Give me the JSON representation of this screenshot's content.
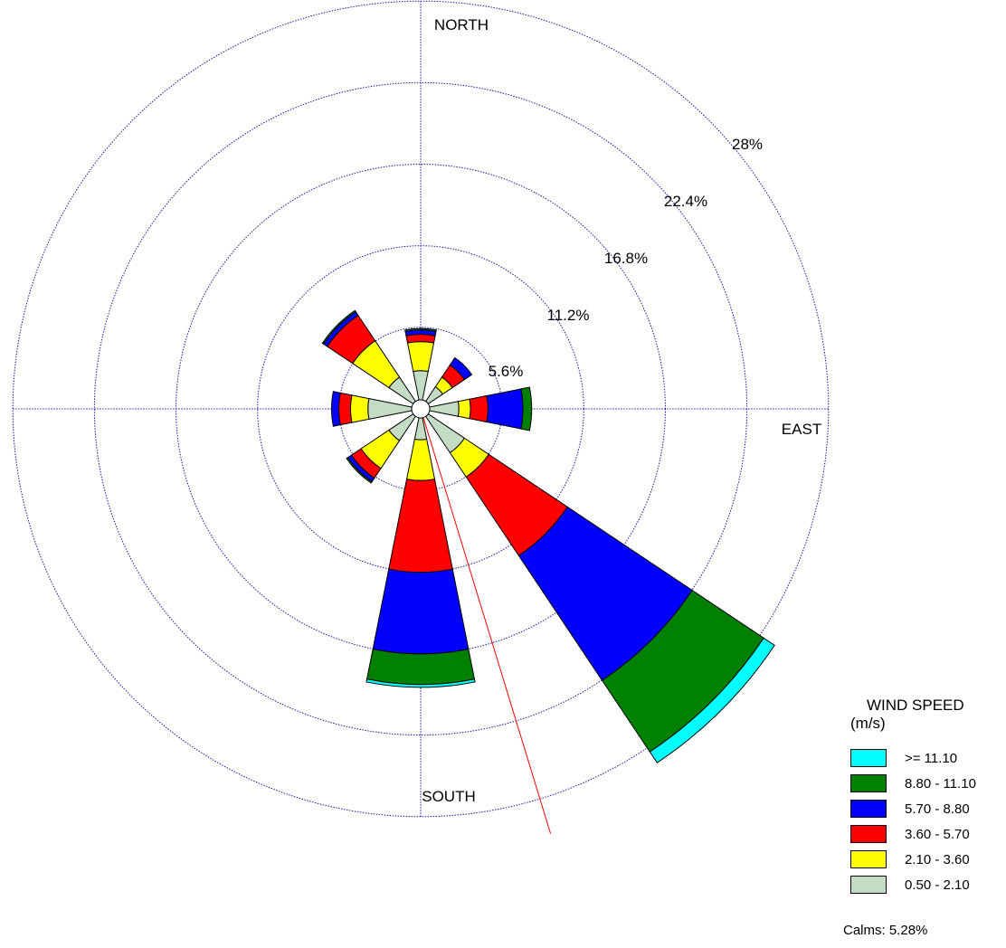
{
  "chart_data": {
    "type": "windrose",
    "directions_deg": [
      0,
      22.5,
      45,
      67.5,
      90,
      112.5,
      135,
      157.5,
      180,
      202.5,
      225,
      247.5,
      270,
      292.5,
      315,
      337.5
    ],
    "bins": [
      {
        "label": "0.50 - 2.10",
        "color": "#c4dcc4"
      },
      {
        "label": "2.10 - 3.60",
        "color": "#ffff00"
      },
      {
        "label": "3.60 - 5.70",
        "color": "#ff0000"
      },
      {
        "label": "5.70 - 8.80",
        "color": "#0000ff"
      },
      {
        "label": "8.80 - 11.10",
        "color": "#008000"
      },
      {
        "label": ">= 11.10",
        "color": "#00ffff"
      }
    ],
    "frequencies_percent": [
      [
        2.0,
        2.0,
        0.5,
        0.3,
        0.1,
        0.0
      ],
      [
        0.0,
        0.0,
        0.0,
        0.0,
        0.0,
        0.0
      ],
      [
        1.2,
        0.8,
        1.0,
        0.6,
        0.0,
        0.0
      ],
      [
        0.0,
        0.0,
        0.0,
        0.0,
        0.0,
        0.0
      ],
      [
        2.0,
        0.8,
        1.2,
        2.4,
        0.6,
        0.0
      ],
      [
        0.0,
        0.0,
        0.0,
        0.0,
        0.0,
        0.0
      ],
      [
        3.0,
        2.0,
        6.5,
        10.3,
        5.9,
        0.9
      ],
      [
        0.0,
        0.0,
        0.0,
        0.0,
        0.0,
        0.0
      ],
      [
        1.5,
        2.8,
        6.3,
        5.6,
        2.1,
        0.2
      ],
      [
        0.0,
        0.0,
        0.0,
        0.0,
        0.0,
        0.0
      ],
      [
        2.0,
        2.3,
        0.8,
        0.3,
        0.1,
        0.0
      ],
      [
        0.0,
        0.0,
        0.0,
        0.0,
        0.0,
        0.0
      ],
      [
        3.0,
        1.2,
        0.8,
        0.5,
        0.0,
        0.0
      ],
      [
        0.0,
        0.0,
        0.0,
        0.0,
        0.0,
        0.0
      ],
      [
        2.0,
        3.0,
        2.1,
        0.3,
        0.1,
        0.0
      ],
      [
        0.0,
        0.0,
        0.0,
        0.0,
        0.0,
        0.0
      ]
    ],
    "rings_percent": [
      5.6,
      11.2,
      16.8,
      22.4,
      28
    ],
    "ring_labels": [
      "5.6%",
      "11.2%",
      "16.8%",
      "22.4%",
      "28%"
    ],
    "direction_labels": {
      "north": "NORTH",
      "east": "EAST",
      "south": "SOUTH"
    },
    "mean_direction_deg": 163,
    "legend": {
      "title": "WIND SPEED",
      "unit": "(m/s)",
      "items": [
        {
          "label": ">= 11.10",
          "color": "#00ffff"
        },
        {
          "label": "8.80 - 11.10",
          "color": "#008000"
        },
        {
          "label": "5.70 - 8.80",
          "color": "#0000ff"
        },
        {
          "label": "3.60 - 5.70",
          "color": "#ff0000"
        },
        {
          "label": "2.10 - 3.60",
          "color": "#ffff00"
        },
        {
          "label": "0.50 - 2.10",
          "color": "#c4dcc4"
        }
      ]
    },
    "calms_label": "Calms: 5.28%",
    "grid": true
  }
}
